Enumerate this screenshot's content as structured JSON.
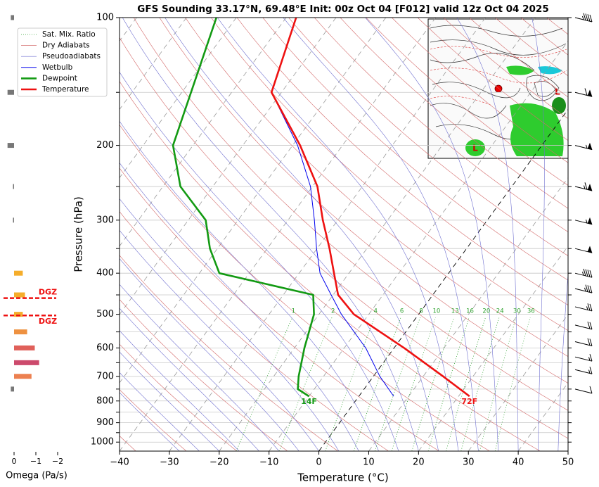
{
  "chart_data": [
    {
      "type": "skewt",
      "title": "GFS Sounding 33.17°N, 69.48°E Init: 00z Oct 04 [F012] valid 12z Oct 04 2025",
      "x_label": "Temperature (°C)",
      "y_label": "Pressure (hPa)",
      "xlim": [
        -40,
        50
      ],
      "ylim": [
        1050,
        100
      ],
      "log_y": true,
      "xticks": [
        {
          "value": -40,
          "label": "−40"
        },
        {
          "value": -30,
          "label": "−30"
        },
        {
          "value": -20,
          "label": "−20"
        },
        {
          "value": -10,
          "label": "−10"
        },
        0,
        10,
        20,
        30,
        40,
        50
      ],
      "yticks": [
        100,
        200,
        300,
        400,
        500,
        600,
        700,
        800,
        900,
        1000
      ],
      "yticks_minor": [
        150,
        250,
        350,
        450,
        550,
        650,
        750,
        850,
        950
      ],
      "grid": true,
      "legend": "upper left",
      "reference_lines": [
        {
          "name": "Sat. Mix. Ratio",
          "color": "#2ca02c",
          "labels": [
            1,
            2,
            4,
            6,
            8,
            10,
            13,
            16,
            20,
            24,
            30,
            36
          ]
        },
        {
          "name": "Dry Adiabats",
          "color": "#d46a6a"
        },
        {
          "name": "Pseudoadiabats",
          "color": "#7070d0"
        }
      ],
      "series": [
        {
          "name": "Wetbulb",
          "color": "#0000ee",
          "pressure": [
            780,
            700,
            600,
            500,
            450,
            400,
            350,
            300,
            250,
            200,
            150,
            100
          ],
          "values": [
            7,
            1.3,
            -5.7,
            -15.5,
            -20.4,
            -25.8,
            -30.1,
            -34.7,
            -40.4,
            -49,
            -62,
            -68
          ]
        },
        {
          "name": "Dewpoint",
          "color": "#139a13",
          "pressure": [
            780,
            750,
            700,
            600,
            500,
            450,
            400,
            350,
            300,
            250,
            200,
            100
          ],
          "values": [
            -10,
            -13.3,
            -15,
            -18,
            -21,
            -24,
            -46,
            -51.5,
            -56.5,
            -66.5,
            -74,
            -84
          ],
          "value_labels": [
            "14F",
            null,
            null,
            null,
            null,
            null,
            null,
            null,
            null,
            null,
            null,
            null
          ]
        },
        {
          "name": "Temperature",
          "color": "#ee1111",
          "pressure": [
            780,
            700,
            600,
            500,
            450,
            400,
            350,
            300,
            250,
            200,
            150,
            100
          ],
          "values": [
            22.2,
            14,
            2,
            -13,
            -19,
            -23,
            -27.5,
            -33,
            -39,
            -48.5,
            -62,
            -68
          ],
          "value_labels": [
            "72F",
            null,
            null,
            null,
            null,
            null,
            null,
            null,
            null,
            null,
            null,
            null
          ]
        }
      ],
      "wind_barbs": {
        "pressure": [
          100,
          150,
          200,
          250,
          300,
          350,
          400,
          435,
          480,
          530,
          580,
          630,
          675,
          750
        ],
        "speed": [
          45,
          60,
          55,
          65,
          55,
          50,
          45,
          35,
          25,
          20,
          20,
          15,
          15,
          10
        ]
      },
      "inset": {
        "type": "map",
        "labels": [
          "L",
          "L"
        ]
      }
    },
    {
      "type": "omega_bars",
      "x_label": "Omega (Pa/s)",
      "xlim": [
        0.5,
        -2.0
      ],
      "xticks": [
        0,
        {
          "value": -1,
          "label": "−1"
        },
        {
          "value": -2,
          "label": "−2"
        }
      ],
      "ylim": [
        1050,
        100
      ],
      "log_y": true,
      "y": [
        100,
        150,
        200,
        250,
        300,
        400,
        450,
        500,
        550,
        600,
        650,
        700,
        750
      ],
      "values": [
        0.15,
        0.3,
        0.3,
        0.05,
        0.05,
        -0.4,
        -0.5,
        -0.4,
        -0.6,
        -0.95,
        -1.15,
        -0.8,
        0.15
      ],
      "colors": [
        "#777777",
        "#777777",
        "#777777",
        "#777777",
        "#777777",
        "#f5ad2b",
        "#f5ad2b",
        "#f5ad2b",
        "#ee9140",
        "#e0605a",
        "#cc4a6c",
        "#ec8050",
        "#777777"
      ],
      "dgz": [
        {
          "value": 458,
          "label": "DGZ"
        },
        {
          "value": 503,
          "label": "DGZ"
        }
      ],
      "dgz_color": "#ee1111"
    }
  ]
}
